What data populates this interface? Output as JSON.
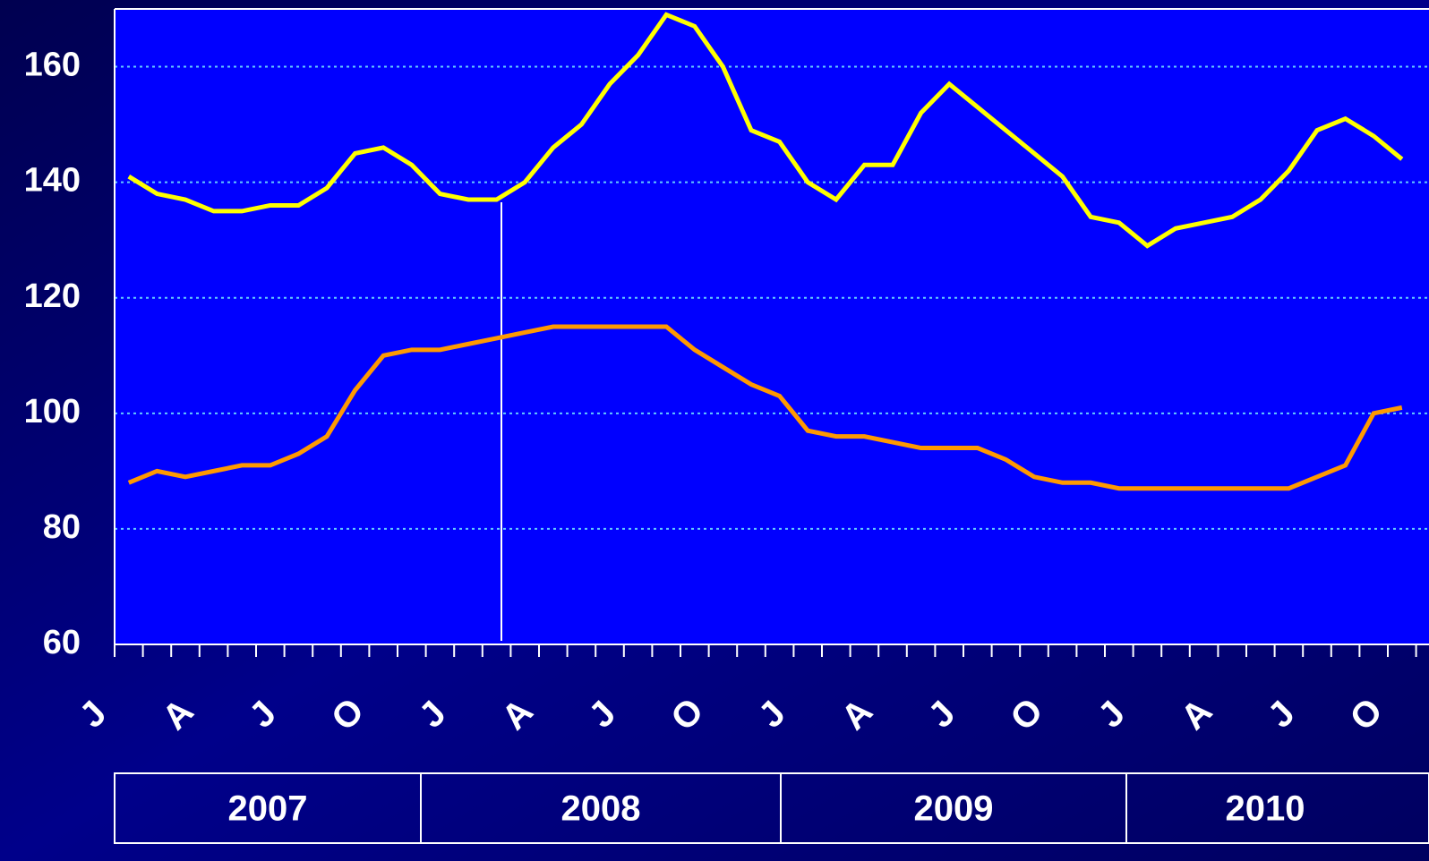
{
  "chart_data": {
    "type": "line",
    "categories": [
      "J",
      null,
      null,
      "A",
      null,
      null,
      "J",
      null,
      null,
      "O",
      null,
      null,
      "J",
      null,
      null,
      "A",
      null,
      null,
      "J",
      null,
      null,
      "O",
      null,
      null,
      "J",
      null,
      null,
      "A",
      null,
      null,
      "J",
      null,
      null,
      "O",
      null,
      null,
      "J",
      null,
      null,
      "A",
      null,
      null,
      "J",
      null,
      null,
      "O"
    ],
    "years": [
      "2007",
      "2008",
      "2009",
      "2010"
    ],
    "series": [
      {
        "color": "#ffff00",
        "values": [
          141,
          138,
          137,
          135,
          135,
          136,
          136,
          139,
          145,
          146,
          143,
          138,
          137,
          137,
          140,
          146,
          150,
          157,
          162,
          169,
          167,
          160,
          149,
          147,
          140,
          137,
          143,
          143,
          152,
          157,
          153,
          149,
          145,
          141,
          134,
          133,
          129,
          132,
          133,
          134,
          137,
          142,
          149,
          151,
          148,
          144
        ]
      },
      {
        "color": "#ff9900",
        "values": [
          88,
          90,
          89,
          90,
          91,
          91,
          93,
          96,
          104,
          110,
          111,
          111,
          112,
          113,
          114,
          115,
          115,
          115,
          115,
          115,
          111,
          108,
          105,
          103,
          97,
          96,
          96,
          95,
          94,
          94,
          94,
          92,
          89,
          88,
          88,
          87,
          87,
          87,
          87,
          87,
          87,
          87,
          89,
          91,
          100,
          101
        ]
      }
    ],
    "ylim": [
      60,
      170
    ],
    "yticks": [
      60,
      80,
      100,
      120,
      140,
      160
    ],
    "grid": true
  }
}
